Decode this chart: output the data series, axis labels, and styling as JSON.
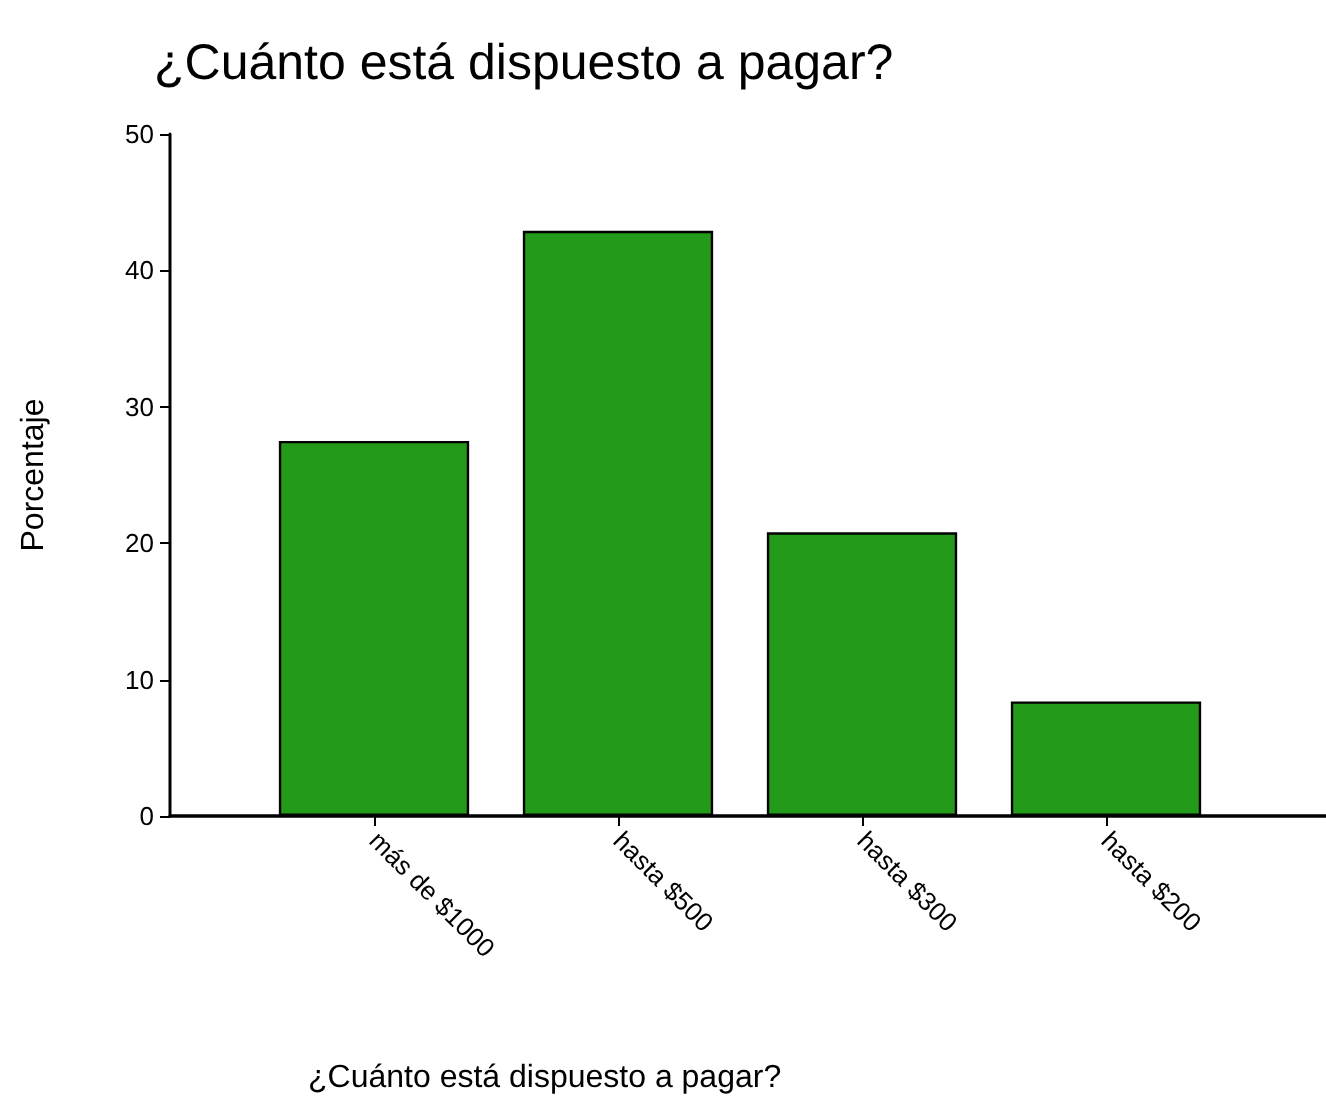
{
  "chart_data": {
    "type": "bar",
    "title": "¿Cuánto está dispuesto a pagar?",
    "xlabel": "¿Cuánto está dispuesto a pagar?",
    "ylabel": "Porcentaje",
    "categories": [
      "más de $1000",
      "hasta $500",
      "hasta $300",
      "hasta $200"
    ],
    "values": [
      27.5,
      42.9,
      20.8,
      8.4
    ],
    "color": "#239a19",
    "ylim": [
      0,
      50
    ],
    "yticks": [
      0,
      10,
      20,
      30,
      40,
      50
    ],
    "grid": false
  }
}
